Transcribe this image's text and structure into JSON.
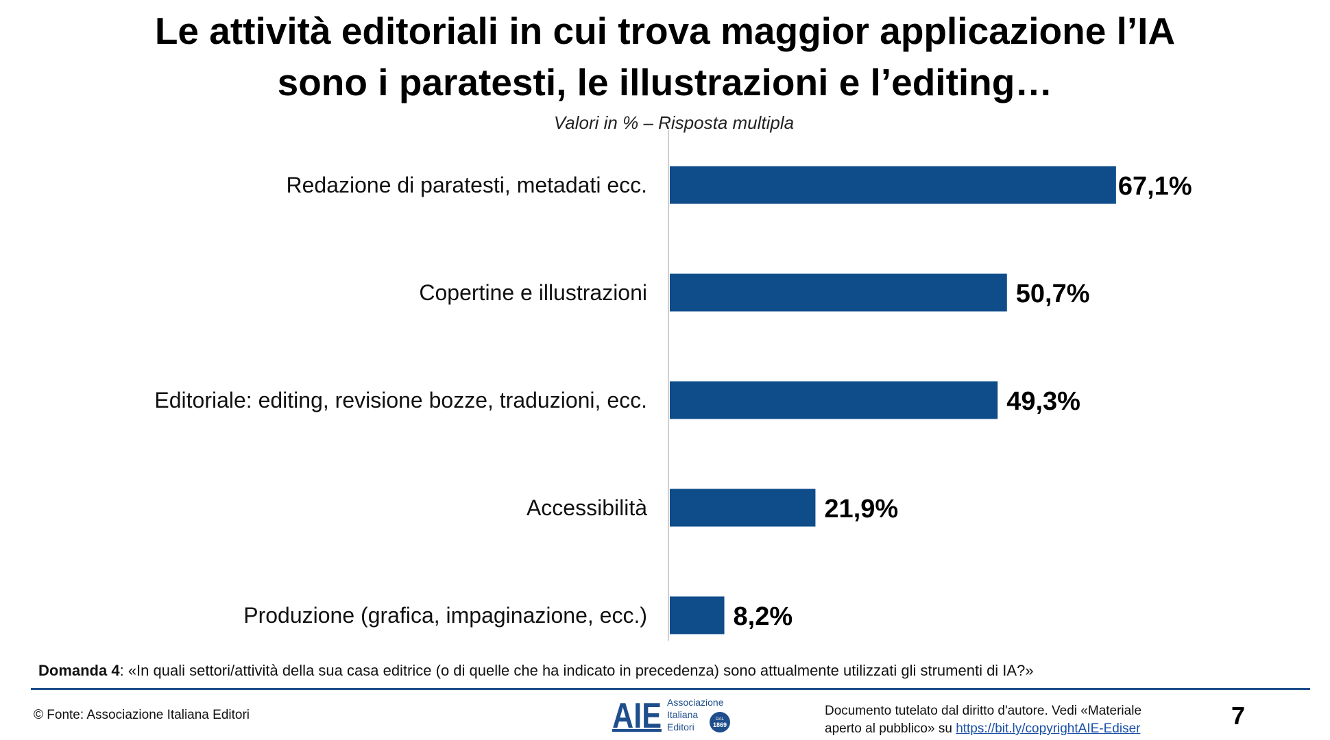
{
  "title_line1": "Le attività editoriali in cui trova maggior applicazione l’IA",
  "title_line2": "sono i paratesti, le illustrazioni e l’editing…",
  "subtitle": "Valori in % – Risposta multipla",
  "chart_data": {
    "type": "bar",
    "orientation": "horizontal",
    "categories": [
      "Redazione di paratesti, metadati ecc.",
      "Copertine e illustrazioni",
      "Editoriale: editing, revisione bozze, traduzioni, ecc.",
      "Accessibilità",
      "Produzione (grafica, impaginazione, ecc.)"
    ],
    "values": [
      67.1,
      50.7,
      49.3,
      21.9,
      8.2
    ],
    "data_labels": [
      "67,1%",
      "50,7%",
      "49,3%",
      "21,9%",
      "8,2%"
    ],
    "bar_color": "#0F4C8A",
    "grid": false
  },
  "footer": {
    "question_label": "Domanda 4",
    "question_text": ": «In quali settori/attività della sua casa editrice (o di quelle che ha indicato in precedenza) sono attualmente utilizzati gli strumenti di IA?»",
    "source": "© Fonte: Associazione Italiana Editori",
    "logo_text": "AIE Associazione Italiana Editori DAL 1869",
    "copyright_line1": "Documento tutelato dal diritto d'autore. Vedi «Materiale",
    "copyright_line2_prefix": "aperto al pubblico» su ",
    "copyright_link": "https://bit.ly/copyrightAIE-Ediser",
    "page_number": "7"
  }
}
